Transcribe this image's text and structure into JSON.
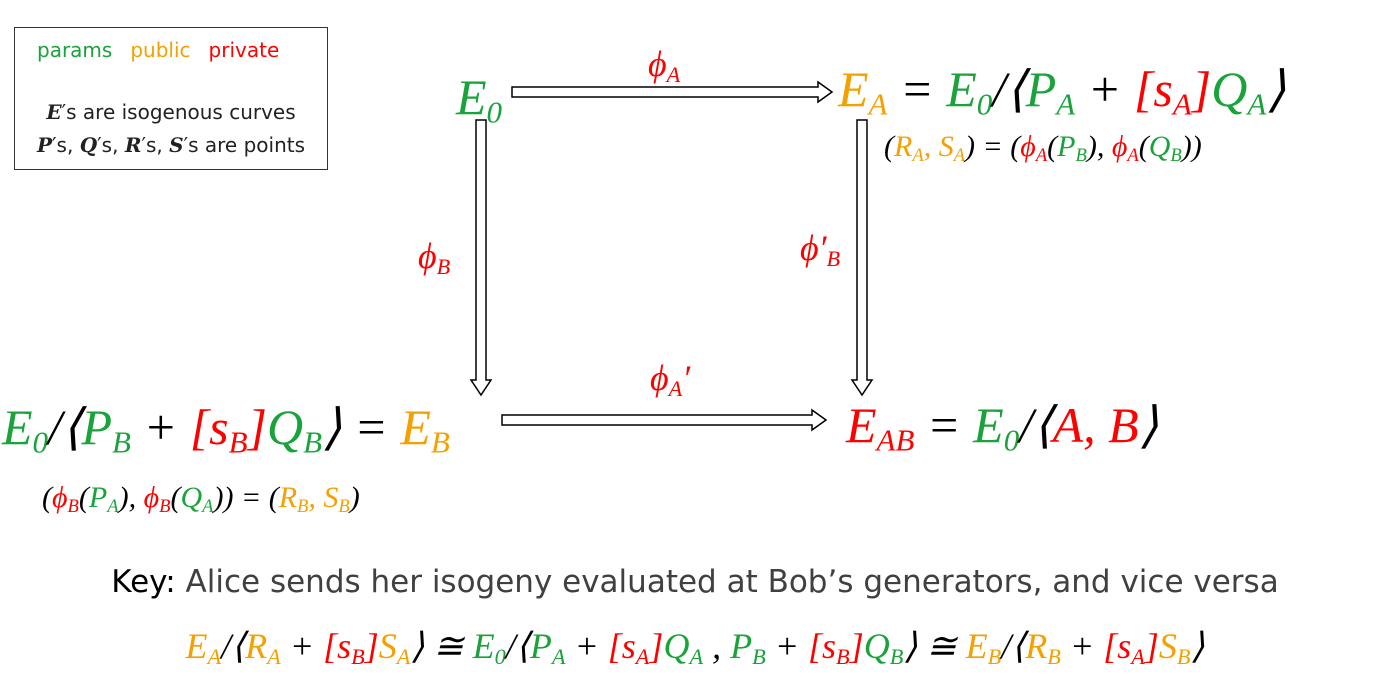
{
  "legend": {
    "items": [
      {
        "label": "params",
        "color": "#1aa33a"
      },
      {
        "label": "public",
        "color": "#f5a000"
      },
      {
        "label": "private",
        "color": "#ff0000"
      }
    ],
    "lines": [
      [
        {
          "text": "E",
          "bold": true
        },
        {
          "text": "′s are isogenous curves"
        }
      ],
      [
        {
          "text": "P",
          "bold": true
        },
        {
          "text": "′s, "
        },
        {
          "text": "Q",
          "bold": true
        },
        {
          "text": "′s, "
        },
        {
          "text": "R",
          "bold": true
        },
        {
          "text": "′s, "
        },
        {
          "text": "S",
          "bold": true
        },
        {
          "text": "′s are points"
        }
      ]
    ]
  },
  "nodes": {
    "e0": [
      {
        "text": "E",
        "sub": "0",
        "color": "#1aa33a"
      }
    ],
    "ea": [
      {
        "text": "E",
        "sub": "A",
        "color": "#f5a000"
      },
      {
        "text": " = ",
        "color": "#000000"
      },
      {
        "text": "E",
        "sub": "0",
        "color": "#1aa33a"
      },
      {
        "text": "/⟨",
        "color": "#000000"
      },
      {
        "text": "P",
        "sub": "A",
        "color": "#1aa33a"
      },
      {
        "text": " + ",
        "color": "#000000"
      },
      {
        "text": "[s",
        "sub": "A",
        "color": "#ff0000"
      },
      {
        "text": "]",
        "color": "#ff0000"
      },
      {
        "text": "Q",
        "sub": "A",
        "color": "#1aa33a"
      },
      {
        "text": "⟩",
        "color": "#000000"
      }
    ],
    "ea_caption": [
      {
        "text": "(",
        "color": "#000000"
      },
      {
        "text": "R",
        "sub": "A",
        "color": "#f5a000"
      },
      {
        "text": ", S",
        "sub": "A",
        "color": "#f5a000"
      },
      {
        "text": ") = (",
        "color": "#000000"
      },
      {
        "text": "ϕ",
        "sub": "A",
        "color": "#ff0000"
      },
      {
        "text": "(",
        "color": "#000000"
      },
      {
        "text": "P",
        "sub": "B",
        "color": "#1aa33a"
      },
      {
        "text": "), ",
        "color": "#000000"
      },
      {
        "text": "ϕ",
        "sub": "A",
        "color": "#ff0000"
      },
      {
        "text": "(",
        "color": "#000000"
      },
      {
        "text": "Q",
        "sub": "B",
        "color": "#1aa33a"
      },
      {
        "text": "))",
        "color": "#000000"
      }
    ],
    "eb": [
      {
        "text": "E",
        "sub": "0",
        "color": "#1aa33a"
      },
      {
        "text": "/⟨",
        "color": "#000000"
      },
      {
        "text": "P",
        "sub": "B",
        "color": "#1aa33a"
      },
      {
        "text": " + ",
        "color": "#000000"
      },
      {
        "text": "[s",
        "sub": "B",
        "color": "#ff0000"
      },
      {
        "text": "]",
        "color": "#ff0000"
      },
      {
        "text": "Q",
        "sub": "B",
        "color": "#1aa33a"
      },
      {
        "text": "⟩ = ",
        "color": "#000000"
      },
      {
        "text": "E",
        "sub": "B",
        "color": "#f5a000"
      }
    ],
    "eb_caption": [
      {
        "text": "(",
        "color": "#000000"
      },
      {
        "text": "ϕ",
        "sub": "B",
        "color": "#ff0000"
      },
      {
        "text": "(",
        "color": "#000000"
      },
      {
        "text": "P",
        "sub": "A",
        "color": "#1aa33a"
      },
      {
        "text": "), ",
        "color": "#000000"
      },
      {
        "text": "ϕ",
        "sub": "B",
        "color": "#ff0000"
      },
      {
        "text": "(",
        "color": "#000000"
      },
      {
        "text": "Q",
        "sub": "A",
        "color": "#1aa33a"
      },
      {
        "text": ")) = (",
        "color": "#000000"
      },
      {
        "text": "R",
        "sub": "B",
        "color": "#f5a000"
      },
      {
        "text": ", S",
        "sub": "B",
        "color": "#f5a000"
      },
      {
        "text": ")",
        "color": "#000000"
      }
    ],
    "eab": [
      {
        "text": "E",
        "sub": "AB",
        "color": "#ff0000"
      },
      {
        "text": " = ",
        "color": "#000000"
      },
      {
        "text": "E",
        "sub": "0",
        "color": "#1aa33a"
      },
      {
        "text": "/⟨",
        "color": "#000000"
      },
      {
        "text": "A, B",
        "color": "#ff0000"
      },
      {
        "text": "⟩",
        "color": "#000000"
      }
    ]
  },
  "arrows": {
    "phi_a": [
      {
        "text": "ϕ",
        "sub": "A",
        "color": "#ff0000"
      }
    ],
    "phi_b": [
      {
        "text": "ϕ",
        "sub": "B",
        "color": "#ff0000"
      }
    ],
    "phi_b_prime": [
      {
        "text": "ϕ′",
        "sub": "B",
        "color": "#ff0000"
      }
    ],
    "phi_a_prime": [
      {
        "text": "ϕ",
        "sub": "A",
        "color": "#ff0000"
      },
      {
        "text": "′",
        "color": "#ff0000"
      }
    ]
  },
  "key": [
    {
      "text": "Key:",
      "color": "#000000"
    },
    {
      "text": " Alice sends her isogeny evaluated at Bob’s generators, and vice versa",
      "color": "#404040"
    }
  ],
  "equation": [
    {
      "text": "E",
      "sub": "A",
      "color": "#f5a000"
    },
    {
      "text": "/⟨",
      "color": "#000000"
    },
    {
      "text": "R",
      "sub": "A",
      "color": "#f5a000"
    },
    {
      "text": " + ",
      "color": "#000000"
    },
    {
      "text": "[s",
      "sub": "B",
      "color": "#ff0000"
    },
    {
      "text": "]",
      "color": "#ff0000"
    },
    {
      "text": "S",
      "sub": "A",
      "color": "#f5a000"
    },
    {
      "text": "⟩ ≅ ",
      "color": "#000000"
    },
    {
      "text": "E",
      "sub": "0",
      "color": "#1aa33a"
    },
    {
      "text": "/⟨",
      "color": "#000000"
    },
    {
      "text": "P",
      "sub": "A",
      "color": "#1aa33a"
    },
    {
      "text": " + ",
      "color": "#000000"
    },
    {
      "text": "[s",
      "sub": "A",
      "color": "#ff0000"
    },
    {
      "text": "]",
      "color": "#ff0000"
    },
    {
      "text": "Q",
      "sub": "A",
      "color": "#1aa33a"
    },
    {
      "text": " , ",
      "color": "#000000"
    },
    {
      "text": "P",
      "sub": "B",
      "color": "#1aa33a"
    },
    {
      "text": " + ",
      "color": "#000000"
    },
    {
      "text": "[s",
      "sub": "B",
      "color": "#ff0000"
    },
    {
      "text": "]",
      "color": "#ff0000"
    },
    {
      "text": "Q",
      "sub": "B",
      "color": "#1aa33a"
    },
    {
      "text": "⟩ ≅ ",
      "color": "#000000"
    },
    {
      "text": "E",
      "sub": "B",
      "color": "#f5a000"
    },
    {
      "text": "/⟨",
      "color": "#000000"
    },
    {
      "text": "R",
      "sub": "B",
      "color": "#f5a000"
    },
    {
      "text": " + ",
      "color": "#000000"
    },
    {
      "text": "[s",
      "sub": "A",
      "color": "#ff0000"
    },
    {
      "text": "]",
      "color": "#ff0000"
    },
    {
      "text": "S",
      "sub": "B",
      "color": "#f5a000"
    },
    {
      "text": "⟩",
      "color": "#000000"
    }
  ]
}
